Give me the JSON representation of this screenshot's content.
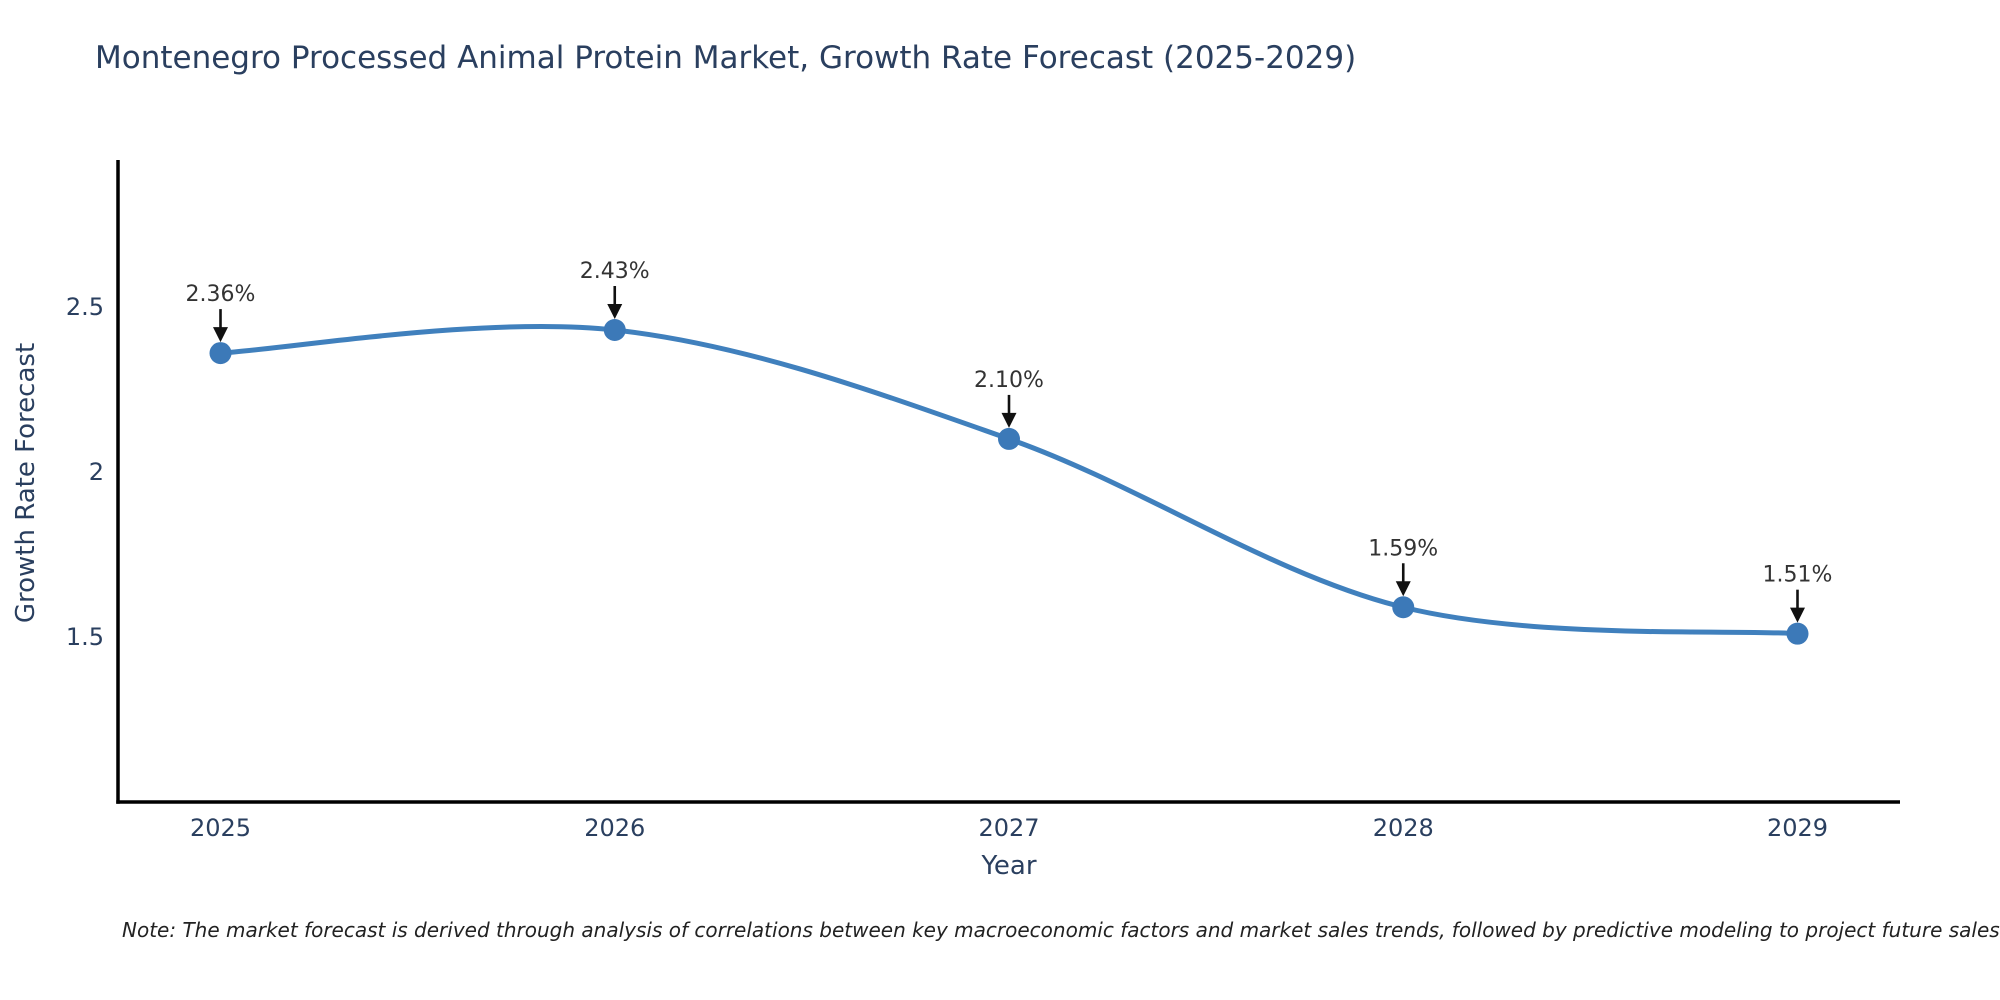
{
  "chart_data": {
    "type": "line",
    "title": "Montenegro Processed Animal Protein Market, Growth Rate Forecast (2025-2029)",
    "xlabel": "Year",
    "ylabel": "Growth Rate Forecast",
    "x": [
      2025,
      2026,
      2027,
      2028,
      2029
    ],
    "values": [
      2.36,
      2.43,
      2.1,
      1.59,
      1.51
    ],
    "point_labels": [
      "2.36%",
      "2.43%",
      "2.10%",
      "1.59%",
      "1.51%"
    ],
    "xticks": [
      "2025",
      "2026",
      "2027",
      "2028",
      "2029"
    ],
    "yticks": [
      {
        "value": 2.5,
        "label": "2.5"
      },
      {
        "value": 2.0,
        "label": "2"
      },
      {
        "value": 1.5,
        "label": "1.5"
      }
    ],
    "xlim": [
      2024.74,
      2029.26
    ],
    "ylim": [
      1.0,
      2.945
    ],
    "grid": false,
    "legend": "none",
    "line_shape": "spline",
    "colors": {
      "line": "#4080bd",
      "marker": "#3c79b8",
      "axis": "#000000",
      "arrow": "#111111",
      "annotation_text": "#333333",
      "tick_text": "#2a3f5f",
      "title_text": "#2a3f5f",
      "note_text": "#222222",
      "background": "#ffffff"
    }
  },
  "note": "Note: The market forecast is derived through analysis of correlations between key macroeconomic factors and market sales trends, followed by predictive modeling to project future sales"
}
